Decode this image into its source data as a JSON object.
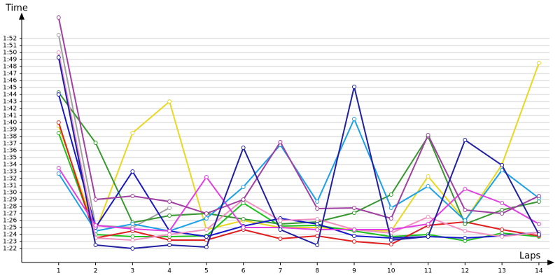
{
  "chart_data": {
    "type": "line",
    "title": "Time",
    "x_label": "Laps",
    "x": [
      1,
      2,
      3,
      4,
      5,
      6,
      7,
      8,
      9,
      10,
      11,
      12,
      13,
      14
    ],
    "xlim": [
      0,
      14.4
    ],
    "xticks": [
      1,
      2,
      3,
      4,
      5,
      6,
      7,
      8,
      9,
      10,
      11,
      12,
      13,
      14
    ],
    "ylim": [
      80,
      115.5
    ],
    "yticks": [
      {
        "value": 82,
        "label": "1:22"
      },
      {
        "value": 83,
        "label": "1:23"
      },
      {
        "value": 84,
        "label": "1:24"
      },
      {
        "value": 85,
        "label": "1:25"
      },
      {
        "value": 86,
        "label": "1:26"
      },
      {
        "value": 87,
        "label": "1:27"
      },
      {
        "value": 88,
        "label": "1:28"
      },
      {
        "value": 89,
        "label": "1:29"
      },
      {
        "value": 90,
        "label": "1:30"
      },
      {
        "value": 91,
        "label": "1:31"
      },
      {
        "value": 92,
        "label": "1:32"
      },
      {
        "value": 93,
        "label": "1:33"
      },
      {
        "value": 94,
        "label": "1:34"
      },
      {
        "value": 95,
        "label": "1:35"
      },
      {
        "value": 96,
        "label": "1:36"
      },
      {
        "value": 97,
        "label": "1:37"
      },
      {
        "value": 98,
        "label": "1:38"
      },
      {
        "value": 99,
        "label": "1:39"
      },
      {
        "value": 100,
        "label": "1:40"
      },
      {
        "value": 101,
        "label": "1:41"
      },
      {
        "value": 102,
        "label": "1:42"
      },
      {
        "value": 103,
        "label": "1:43"
      },
      {
        "value": 104,
        "label": "1:44"
      },
      {
        "value": 105,
        "label": "1:45"
      },
      {
        "value": 106,
        "label": "1:46"
      },
      {
        "value": 107,
        "label": "1:47"
      },
      {
        "value": 108,
        "label": "1:48"
      },
      {
        "value": 109,
        "label": "1:49"
      },
      {
        "value": 110,
        "label": "1:50"
      },
      {
        "value": 111,
        "label": "1:51"
      },
      {
        "value": 112,
        "label": "1:52"
      }
    ],
    "grid": true,
    "series": [
      {
        "color": "#a0a0a0",
        "values": [
          112.5,
          85.3,
          85,
          87.8,
          null,
          null,
          null,
          null,
          null,
          null,
          null,
          null,
          null,
          null
        ]
      },
      {
        "color": "#e8d820",
        "values": [
          99.5,
          84.5,
          98.5,
          103,
          84.7,
          86,
          85,
          85,
          84.7,
          84.5,
          92.3,
          86,
          94,
          108.5
        ]
      },
      {
        "color": "#20c020",
        "values": [
          98.5,
          84,
          83.7,
          83.7,
          83.8,
          88.5,
          85.2,
          85.3,
          84.5,
          83.7,
          84,
          83.1,
          84.2,
          83.7
        ]
      },
      {
        "color": "#e02020",
        "values": [
          100,
          83.5,
          84.5,
          83.2,
          83.2,
          84.7,
          83.4,
          83.8,
          83,
          82.6,
          85.3,
          85.8,
          84.7,
          83.8
        ]
      },
      {
        "color": "#389830",
        "values": [
          104.3,
          97.1,
          85.7,
          86.7,
          87,
          86.2,
          85.5,
          85.8,
          87.1,
          89.7,
          98,
          85.5,
          87.5,
          88.7
        ]
      },
      {
        "color": "#1ca0e8",
        "values": [
          92.7,
          84.5,
          85.5,
          84.5,
          86.3,
          90.8,
          96.8,
          88.7,
          100.5,
          87.8,
          90.9,
          86,
          93.2,
          89.2
        ]
      },
      {
        "color": "#1818c8",
        "values": [
          104,
          85,
          93,
          84.5,
          83.7,
          85.2,
          86.3,
          85.5,
          83.8,
          83.5,
          83.7,
          83.5,
          83.8,
          84.3
        ]
      },
      {
        "color": "#f090c0",
        "values": [
          110,
          83.5,
          83.2,
          84,
          84.7,
          89,
          86,
          86.2,
          84.7,
          84.2,
          86.5,
          84.5,
          83.7,
          84.3
        ]
      },
      {
        "color": "#e040e0",
        "values": [
          93.5,
          85.3,
          84.8,
          84.5,
          92.2,
          85,
          85,
          84.7,
          84.7,
          84.7,
          85.5,
          90.5,
          88.5,
          85.5
        ]
      },
      {
        "color": "#a040a0",
        "values": [
          115,
          89,
          89.5,
          88.7,
          87,
          89,
          97.2,
          87.7,
          87.8,
          86.3,
          98.2,
          87.5,
          87,
          89.5
        ]
      },
      {
        "color": "#2020a0",
        "values": [
          109.3,
          82.5,
          82,
          82.5,
          82.2,
          96.4,
          84.7,
          82.5,
          105.1,
          83.2,
          83.7,
          97.5,
          93.9,
          84
        ]
      }
    ]
  }
}
